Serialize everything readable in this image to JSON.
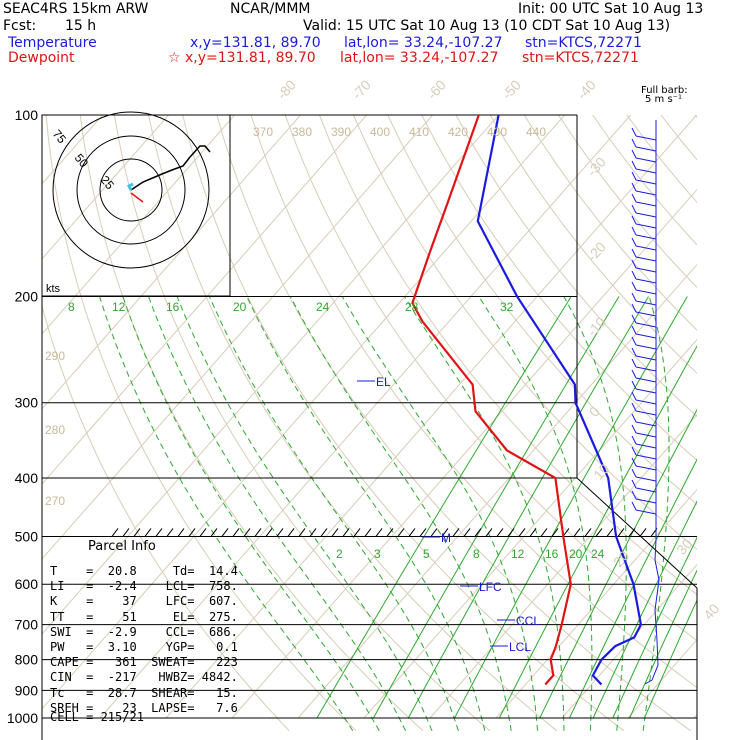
{
  "header": {
    "model": "SEAC4RS 15km ARW",
    "center": "NCAR/MMM",
    "init": "Init: 00 UTC Sat 10 Aug 13",
    "fcst_label": "Fcst:",
    "fcst_value": "15 h",
    "valid": "Valid: 15 UTC Sat 10 Aug 13 (10 CDT Sat 10 Aug 13)"
  },
  "legend": {
    "temperature": {
      "label": "Temperature",
      "xy": "x,y=131.81, 89.70",
      "latlon": "lat,lon= 33.24,-107.27",
      "stn": "stn=KTCS,72271",
      "color": "#1a1ae0"
    },
    "dewpoint": {
      "label": "Dewpoint",
      "marker": "☆",
      "xy": "x,y=131.81, 89.70",
      "latlon": "lat,lon= 33.24,-107.27",
      "stn": "stn=KTCS,72271",
      "color": "#e01414"
    }
  },
  "barb_note": {
    "line1": "Full barb:",
    "line2": "5 m s⁻¹"
  },
  "parcel_info": {
    "title": "Parcel Info",
    "rows": [
      {
        "l1": "T",
        "v1": "20.8",
        "l2": "Td",
        "v2": "14.4"
      },
      {
        "l1": "LI",
        "v1": "-2.4",
        "l2": "LCL",
        "v2": "758."
      },
      {
        "l1": "K",
        "v1": "37",
        "l2": "LFC",
        "v2": "607."
      },
      {
        "l1": "TT",
        "v1": "51",
        "l2": "EL",
        "v2": "275."
      },
      {
        "l1": "SWI",
        "v1": "-2.9",
        "l2": "CCL",
        "v2": "686."
      },
      {
        "l1": "PW",
        "v1": "3.10",
        "l2": "YGP",
        "v2": "0.1"
      },
      {
        "l1": "CAPE",
        "v1": "361",
        "l2": "SWEAT",
        "v2": "223"
      },
      {
        "l1": "CIN",
        "v1": "-217",
        "l2": "HWBZ",
        "v2": "4842."
      },
      {
        "l1": "Tc",
        "v1": "28.7",
        "l2": "SHEAR",
        "v2": "15."
      },
      {
        "l1": "SREH",
        "v1": "23",
        "l2": "LAPSE",
        "v2": "7.6"
      }
    ],
    "cell": "CELL = 215/21"
  },
  "hodograph": {
    "ring_labels": [
      "75",
      "50",
      "25"
    ],
    "unit": "kts"
  },
  "chart_data": {
    "type": "line",
    "title": "",
    "pressure_labels": [
      "100",
      "200",
      "300",
      "400",
      "500",
      "600",
      "700",
      "800",
      "900",
      "1000"
    ],
    "isotherm_labels": [
      "-80",
      "-70",
      "-60",
      "-50",
      "-40",
      "-30",
      "-20",
      "-10",
      "0",
      "10",
      "20",
      "30",
      "40"
    ],
    "theta_labels": [
      "370",
      "380",
      "390",
      "400",
      "410",
      "420",
      "430",
      "440"
    ],
    "theta_side_labels": [
      "290",
      "280",
      "270"
    ],
    "mixing_ratio_upper": [
      "8",
      "12",
      "16",
      "20",
      "24",
      "28",
      "32"
    ],
    "mixing_ratio_lower": [
      "2",
      "3",
      "5",
      "8",
      "12",
      "16",
      "20",
      "24"
    ],
    "level_markers": [
      "EL",
      "M",
      "LFC",
      "CCL",
      "LCL"
    ],
    "series": [
      {
        "name": "Temperature",
        "color": "#1a1ae0",
        "points": [
          [
            880,
            21.5
          ],
          [
            850,
            19
          ],
          [
            800,
            18.2
          ],
          [
            760,
            18.5
          ],
          [
            735,
            20.2
          ],
          [
            700,
            19.5
          ],
          [
            600,
            13
          ],
          [
            500,
            4
          ],
          [
            400,
            -5
          ],
          [
            300,
            -20
          ],
          [
            280,
            -22.5
          ],
          [
            200,
            -43
          ],
          [
            150,
            -59
          ],
          [
            100,
            -70
          ]
        ]
      },
      {
        "name": "Dewpoint",
        "color": "#e01414",
        "points": [
          [
            880,
            13
          ],
          [
            850,
            13
          ],
          [
            800,
            10.5
          ],
          [
            760,
            9.5
          ],
          [
            700,
            7.5
          ],
          [
            600,
            3.5
          ],
          [
            500,
            -4
          ],
          [
            400,
            -13
          ],
          [
            360,
            -24
          ],
          [
            310,
            -34
          ],
          [
            280,
            -38
          ],
          [
            220,
            -54
          ],
          [
            205,
            -58
          ],
          [
            170,
            -62
          ],
          [
            140,
            -66
          ],
          [
            100,
            -73
          ]
        ]
      }
    ]
  }
}
